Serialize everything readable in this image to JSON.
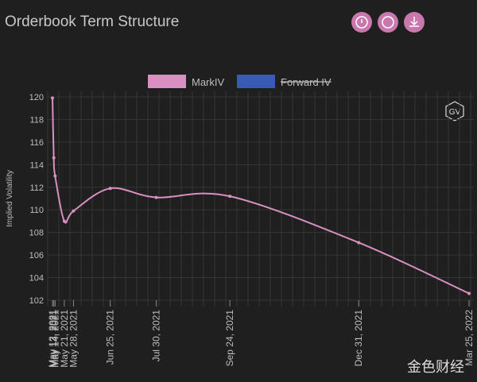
{
  "chart_data": {
    "type": "line",
    "title": "Orderbook Term Structure",
    "ylabel": "Implied Volatility",
    "x": [
      "May 12, 2021",
      "May 13, 2021",
      "May 14, 2021",
      "May 21, 2021",
      "May 28, 2021",
      "Jun 25, 2021",
      "Jul 30, 2021",
      "Sep 24, 2021",
      "Dec 31, 2021",
      "Mar 25, 2022"
    ],
    "series": [
      {
        "name": "MarkIV",
        "color": "#d98fc0",
        "values": [
          119.9,
          114.6,
          113.0,
          109.0,
          109.9,
          111.9,
          111.1,
          111.2,
          107.1,
          102.6
        ]
      },
      {
        "name": "Forward IV",
        "color": "#3a5bb5",
        "hidden": true,
        "values": [
          null,
          null,
          null,
          null,
          null,
          null,
          null,
          null,
          null,
          null
        ]
      }
    ],
    "ylim": [
      102,
      120
    ],
    "yticks": [
      102,
      104,
      106,
      108,
      110,
      112,
      114,
      116,
      118,
      120
    ],
    "grid": true,
    "badge": "GV",
    "watermark": "金色财经"
  }
}
